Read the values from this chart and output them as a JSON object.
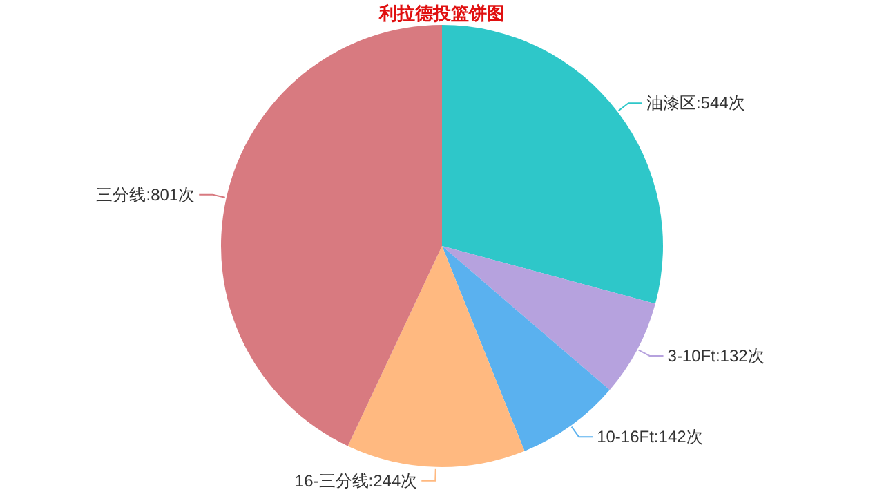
{
  "chart_data": {
    "type": "pie",
    "title": "利拉德投篮饼图",
    "categories": [
      "油漆区",
      "3-10Ft",
      "10-16Ft",
      "16-三分线",
      "三分线"
    ],
    "values": [
      544,
      132,
      142,
      244,
      801
    ],
    "value_labels": [
      "544次",
      "132次",
      "142次",
      "244次",
      "801次"
    ],
    "colors": [
      "#2ec7c9",
      "#b6a2de",
      "#5ab1ef",
      "#ffb980",
      "#d87a80"
    ]
  }
}
